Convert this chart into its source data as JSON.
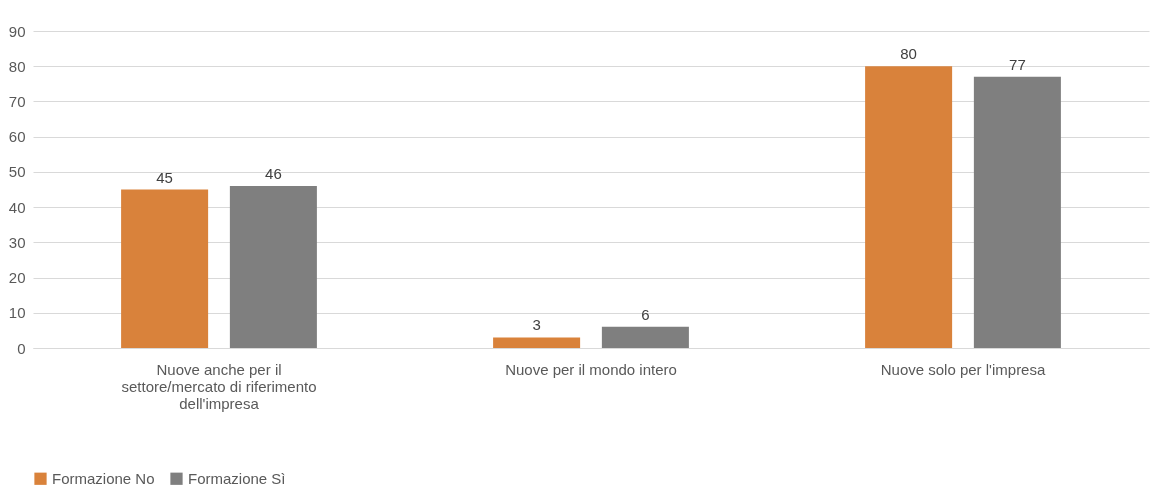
{
  "chart_data": {
    "type": "bar",
    "categories": [
      "Nuove anche per il settore/mercato di riferimento dell'impresa",
      "Nuove per il mondo intero",
      "Nuove solo per l'impresa"
    ],
    "series": [
      {
        "name": "Formazione No",
        "color": "#d9823b",
        "values": [
          45,
          3,
          80
        ]
      },
      {
        "name": "Formazione Sì",
        "color": "#7f7f7f",
        "values": [
          46,
          6,
          77
        ]
      }
    ],
    "ylim": [
      0,
      90
    ],
    "yticks": [
      0,
      10,
      20,
      30,
      40,
      50,
      60,
      70,
      80,
      90
    ],
    "grid": "y",
    "legend": "bottom",
    "data_labels": true
  }
}
